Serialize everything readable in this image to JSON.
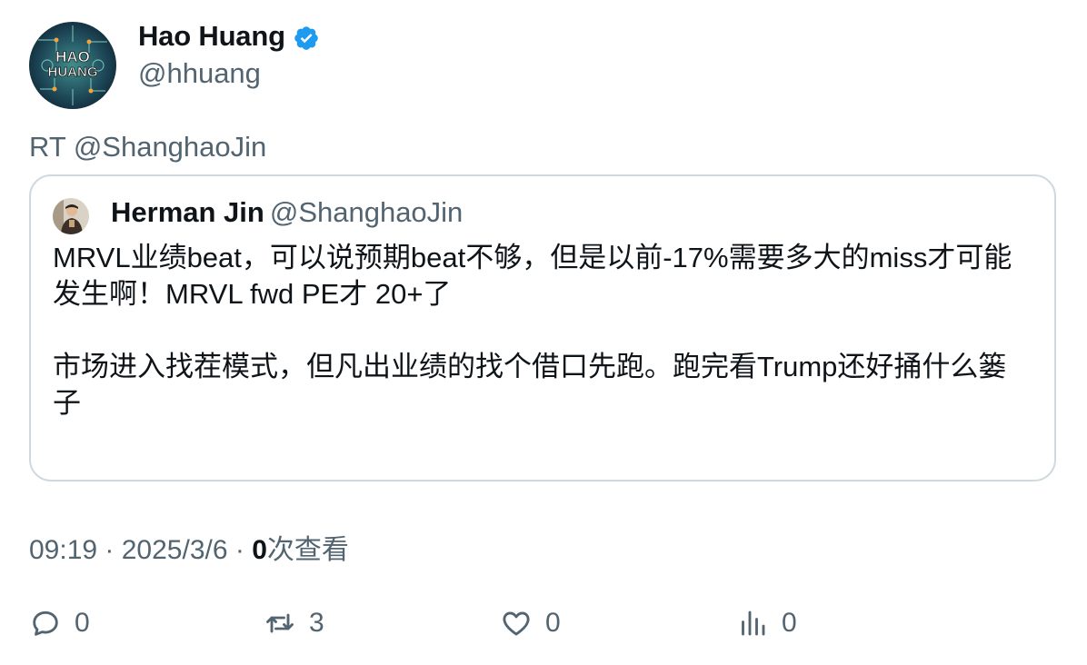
{
  "author": {
    "display_name": "Hao Huang",
    "handle": "@hhuang",
    "avatar_text_line1": "HAO",
    "avatar_text_line2": "HUANG",
    "verified_icon": "verified-badge-icon"
  },
  "retweet_line": "RT @ShanghaoJin",
  "quoted": {
    "display_name": "Herman Jin",
    "handle": "@ShanghaoJin",
    "paragraph1": "MRVL业绩beat，可以说预期beat不够，但是以前-17%需要多大的miss才可能发生啊！MRVL fwd PE才 20+了",
    "paragraph2": "市场进入找茬模式，但凡出业绩的找个借口先跑。跑完看Trump还好捅什么篓子"
  },
  "meta": {
    "time": "09:19",
    "sep1": " · ",
    "date": "2025/3/6",
    "sep2": " · ",
    "views_count": "0",
    "views_label": "次查看"
  },
  "actions": {
    "reply": "0",
    "retweet": "3",
    "like": "0",
    "views": "0"
  },
  "colors": {
    "text_primary": "#0f1419",
    "text_secondary": "#536471",
    "border": "#cfd9de",
    "verified_blue": "#1d9bf0"
  }
}
